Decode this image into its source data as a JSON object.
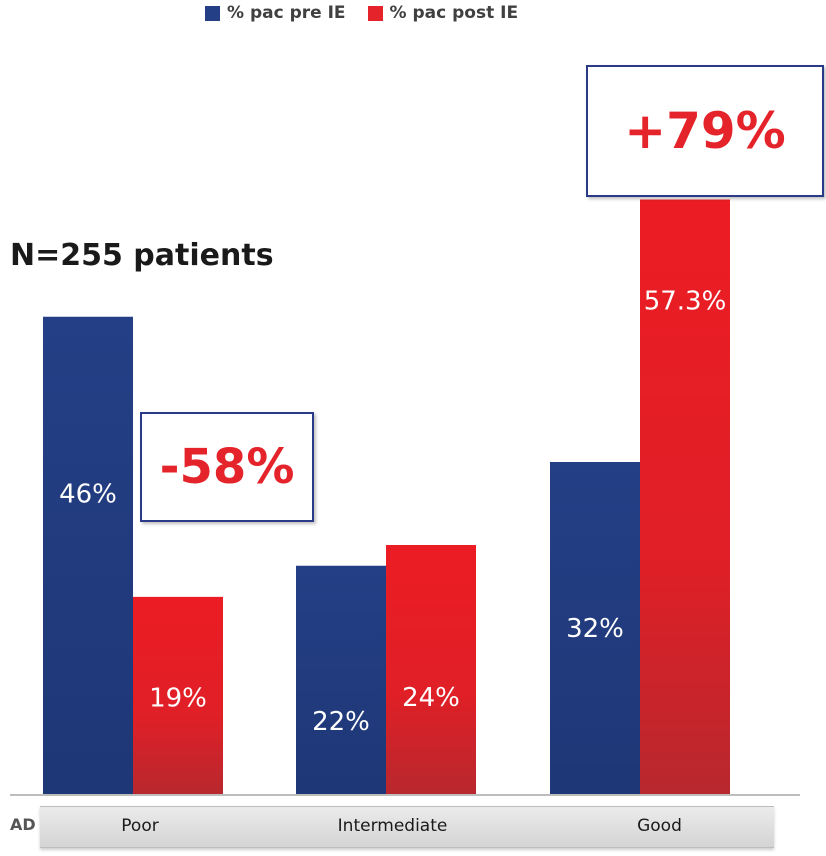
{
  "chart_data": {
    "type": "bar",
    "title": "N=255 patients",
    "categories": [
      "Poor",
      "Intermediate",
      "Good"
    ],
    "series": [
      {
        "name": "% pac pre IE",
        "values": [
          46,
          22,
          32
        ],
        "labels": [
          "46%",
          "22%",
          "32%"
        ],
        "color": "#243f86"
      },
      {
        "name": "% pac post IE",
        "values": [
          19,
          24,
          57.3
        ],
        "labels": [
          "19%",
          "24%",
          "57.3%"
        ],
        "color": "#e4242a"
      }
    ],
    "ylim": [
      0,
      64
    ],
    "grid": false,
    "legend": "top",
    "annotations": [
      {
        "text": "-58%",
        "category": "Poor"
      },
      {
        "text": "+79%",
        "category": "Good"
      }
    ],
    "axis_cut_text": "AD"
  }
}
